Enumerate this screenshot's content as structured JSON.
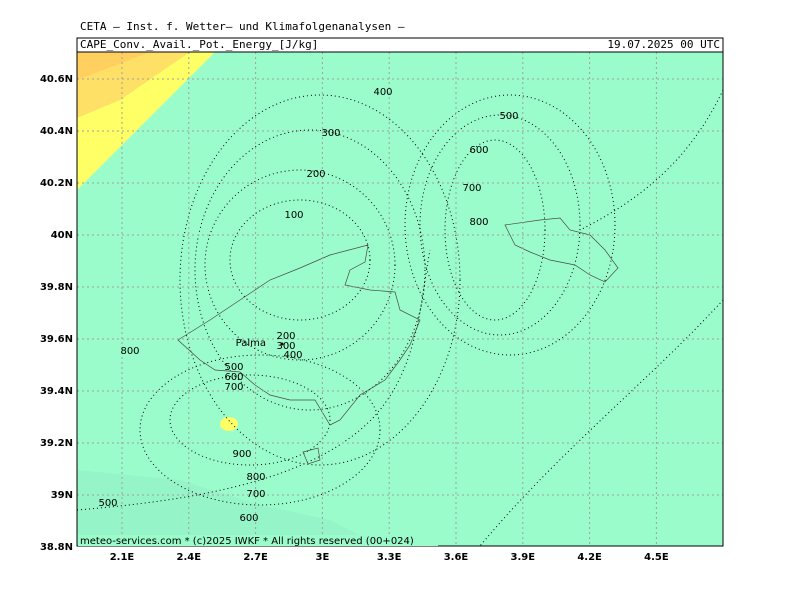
{
  "header": {
    "source": "CETA – Inst. f. Wetter– und Klimafolgenanalysen –",
    "field": "CAPE_Conv._Avail._Pot._Energy_[J/kg]",
    "time": "19.07.2025 00 UTC"
  },
  "map": {
    "lon_labels": [
      "2.1E",
      "2.4E",
      "2.7E",
      "3E",
      "3.3E",
      "3.6E",
      "3.9E",
      "4.2E",
      "4.5E"
    ],
    "lat_labels": [
      "40.6N",
      "40.4N",
      "40.2N",
      "40N",
      "39.8N",
      "39.6N",
      "39.4N",
      "39.2N",
      "39N",
      "38.8N"
    ],
    "place": "Palma",
    "contour_labels": [
      400,
      300,
      200,
      100,
      500,
      600,
      700,
      800,
      800,
      200,
      300,
      400,
      500,
      600,
      700,
      900,
      800,
      700,
      600,
      500
    ],
    "footer": "meteo-services.com * (c)2025 IWKF * All rights reserved (00+024)"
  }
}
